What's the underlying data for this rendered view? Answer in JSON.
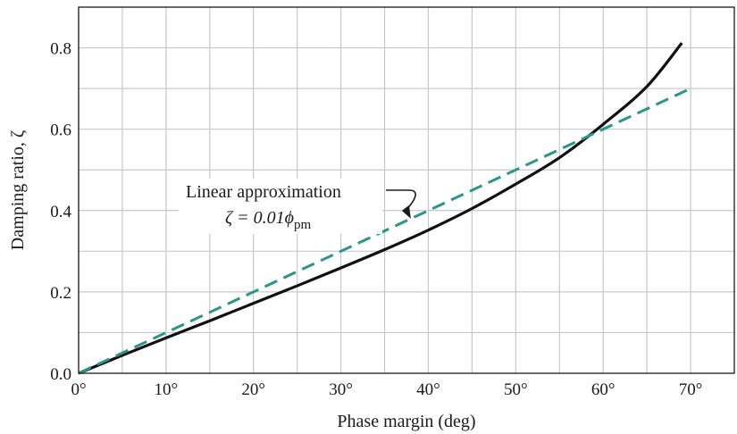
{
  "chart_data": {
    "type": "line",
    "title": "",
    "xlabel": "Phase margin (deg)",
    "ylabel": "Damping ratio, ζ",
    "xlim": [
      0,
      75
    ],
    "ylim": [
      0,
      0.9
    ],
    "x_ticks": [
      0,
      10,
      20,
      30,
      40,
      50,
      60,
      70
    ],
    "x_tick_labels": [
      "0°",
      "10°",
      "20°",
      "30°",
      "40°",
      "50°",
      "60°",
      "70°"
    ],
    "y_ticks": [
      0.0,
      0.2,
      0.4,
      0.6,
      0.8
    ],
    "y_tick_labels": [
      "0.0",
      "0.2",
      "0.4",
      "0.6",
      "0.8"
    ],
    "grid": true,
    "grid_minor_step": {
      "x": 5,
      "y": 0.1
    },
    "series": [
      {
        "style": "solid",
        "color": "#111111",
        "x": [
          0,
          5,
          10,
          15,
          20,
          25,
          30,
          35,
          40,
          45,
          50,
          55,
          60,
          65,
          69
        ],
        "y": [
          0,
          0.044,
          0.087,
          0.129,
          0.172,
          0.215,
          0.259,
          0.304,
          0.352,
          0.405,
          0.465,
          0.53,
          0.612,
          0.705,
          0.812
        ]
      },
      {
        "name": "Linear approximation",
        "style": "dashed",
        "color": "#2a9688",
        "x": [
          0,
          70
        ],
        "y": [
          0,
          0.7
        ]
      }
    ],
    "annotations": [
      {
        "line1": "Linear approximation",
        "line2_prefix": "ζ = 0.01",
        "line2_symbol": "ϕ",
        "line2_subscript": "pm",
        "arrow_target": {
          "x": 38,
          "y": 0.38
        }
      }
    ]
  }
}
